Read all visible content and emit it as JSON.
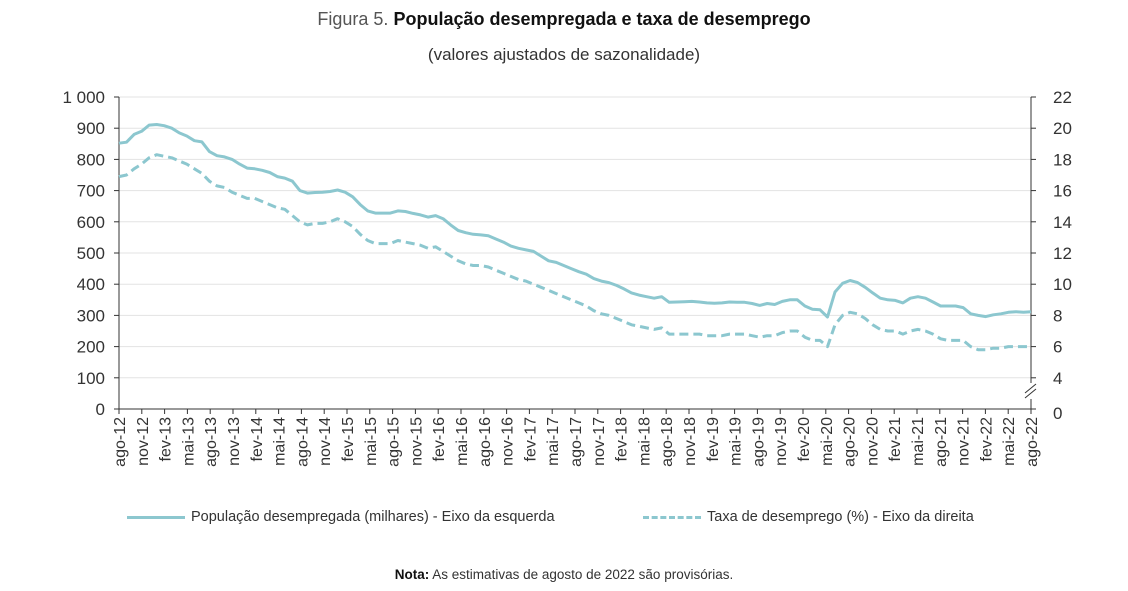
{
  "title": {
    "prefix": "Figura 5.",
    "main": "População desempregada e taxa de desemprego",
    "subtitle": "(valores ajustados de sazonalidade)"
  },
  "note": {
    "label": "Nota:",
    "text": "As estimativas de agosto de 2022 são provisórias."
  },
  "legend": {
    "series1": "População desempregada (milhares) - Eixo da esquerda",
    "series2": "Taxa de desemprego (%) - Eixo da direita"
  },
  "colors": {
    "line": "#8cc7cf",
    "axis": "#333333",
    "grid": "#e3e3e3"
  },
  "chart_data": {
    "type": "line",
    "x_tick_labels": [
      "ago-12",
      "nov-12",
      "fev-13",
      "mai-13",
      "ago-13",
      "nov-13",
      "fev-14",
      "mai-14",
      "ago-14",
      "nov-14",
      "fev-15",
      "mai-15",
      "ago-15",
      "nov-15",
      "fev-16",
      "mai-16",
      "ago-16",
      "nov-16",
      "fev-17",
      "mai-17",
      "ago-17",
      "nov-17",
      "fev-18",
      "mai-18",
      "ago-18",
      "nov-18",
      "fev-19",
      "mai-19",
      "ago-19",
      "nov-19",
      "fev-20",
      "mai-20",
      "ago-20",
      "nov-20",
      "fev-21",
      "mai-21",
      "ago-21",
      "nov-21",
      "fev-22",
      "mai-22",
      "ago-22"
    ],
    "y_left": {
      "ylim": [
        0,
        1000
      ],
      "ticks": [
        "0",
        "100",
        "200",
        "300",
        "400",
        "500",
        "600",
        "700",
        "800",
        "900",
        "1 000"
      ]
    },
    "y_right": {
      "ylim": [
        0,
        22
      ],
      "ticks": [
        "0",
        "4",
        "6",
        "8",
        "10",
        "12",
        "14",
        "16",
        "18",
        "20",
        "22"
      ],
      "broken_axis": true
    },
    "grid": "horizontal",
    "legend_position": "bottom",
    "series": [
      {
        "name": "População desempregada (milhares) - Eixo da esquerda",
        "axis": "left",
        "style": "solid",
        "values": [
          852,
          855,
          880,
          890,
          910,
          912,
          908,
          900,
          885,
          875,
          860,
          856,
          825,
          812,
          808,
          800,
          785,
          772,
          770,
          765,
          758,
          745,
          740,
          730,
          700,
          692,
          694,
          695,
          697,
          702,
          695,
          680,
          655,
          635,
          628,
          628,
          628,
          635,
          633,
          627,
          622,
          615,
          620,
          610,
          590,
          572,
          565,
          560,
          558,
          555,
          545,
          535,
          522,
          515,
          510,
          505,
          490,
          475,
          470,
          460,
          450,
          440,
          432,
          418,
          410,
          405,
          396,
          385,
          372,
          365,
          360,
          355,
          360,
          342,
          343,
          344,
          345,
          343,
          340,
          339,
          340,
          343,
          342,
          342,
          338,
          332,
          338,
          335,
          345,
          350,
          350,
          330,
          320,
          318,
          295,
          375,
          403,
          412,
          405,
          390,
          372,
          355,
          350,
          348,
          340,
          355,
          360,
          355,
          343,
          330,
          330,
          330,
          325,
          305,
          300,
          296,
          302,
          305,
          310,
          312,
          310,
          312
        ]
      },
      {
        "name": "Taxa de desemprego (%) - Eixo da direita",
        "axis": "right",
        "style": "dashed",
        "values": [
          16.9,
          17.0,
          17.4,
          17.7,
          18.1,
          18.3,
          18.2,
          18.1,
          17.9,
          17.7,
          17.4,
          17.1,
          16.6,
          16.3,
          16.2,
          15.9,
          15.7,
          15.5,
          15.5,
          15.3,
          15.1,
          14.9,
          14.8,
          14.4,
          14.0,
          13.8,
          13.9,
          13.9,
          14.0,
          14.2,
          14.0,
          13.7,
          13.2,
          12.8,
          12.6,
          12.6,
          12.6,
          12.8,
          12.7,
          12.6,
          12.5,
          12.3,
          12.4,
          12.1,
          11.8,
          11.5,
          11.3,
          11.2,
          11.2,
          11.1,
          10.9,
          10.7,
          10.5,
          10.3,
          10.2,
          10.0,
          9.8,
          9.6,
          9.4,
          9.2,
          9.0,
          8.8,
          8.6,
          8.3,
          8.1,
          8.0,
          7.8,
          7.6,
          7.4,
          7.3,
          7.2,
          7.1,
          7.2,
          6.8,
          6.8,
          6.8,
          6.8,
          6.8,
          6.7,
          6.7,
          6.7,
          6.8,
          6.8,
          6.8,
          6.7,
          6.6,
          6.7,
          6.7,
          6.9,
          7.0,
          7.0,
          6.6,
          6.4,
          6.4,
          6.0,
          7.4,
          8.0,
          8.2,
          8.1,
          7.8,
          7.4,
          7.1,
          7.0,
          7.0,
          6.8,
          7.0,
          7.1,
          7.0,
          6.8,
          6.5,
          6.4,
          6.4,
          6.4,
          6.0,
          5.8,
          5.8,
          5.9,
          5.9,
          6.0,
          6.0,
          6.0,
          6.0
        ]
      }
    ]
  }
}
